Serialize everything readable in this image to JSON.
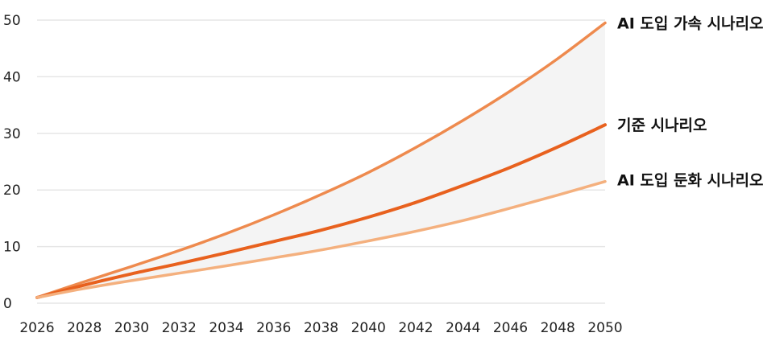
{
  "chart_data": {
    "type": "line",
    "title": "",
    "xlabel": "",
    "ylabel": "",
    "x": [
      2026,
      2028,
      2030,
      2032,
      2034,
      2036,
      2038,
      2040,
      2042,
      2044,
      2046,
      2048,
      2050
    ],
    "x_tick_labels": [
      "2026",
      "2028",
      "2030",
      "2032",
      "2034",
      "2036",
      "2038",
      "2040",
      "2042",
      "2044",
      "2046",
      "2048",
      "2050"
    ],
    "y_tick_labels": [
      "0",
      "10",
      "20",
      "30",
      "40",
      "50"
    ],
    "y_ticks": [
      0,
      10,
      20,
      30,
      40,
      50
    ],
    "xlim": [
      2026,
      2050
    ],
    "ylim": [
      0,
      50
    ],
    "grid": "horizontal",
    "legend": "line-end labels (right)",
    "shaded_band": "between upper and lower series",
    "series": [
      {
        "name": "AI 도입 가속 시나리오",
        "color": "#EE8A4E",
        "values": [
          1.0,
          3.8,
          6.5,
          9.3,
          12.3,
          15.6,
          19.2,
          23.1,
          27.5,
          32.3,
          37.5,
          43.2,
          49.5
        ]
      },
      {
        "name": "기준 시나리오",
        "color": "#E8611E",
        "values": [
          1.0,
          3.2,
          5.2,
          7.0,
          8.9,
          10.9,
          12.9,
          15.2,
          17.8,
          20.8,
          24.0,
          27.6,
          31.5
        ]
      },
      {
        "name": "AI 도입 둔화 시나리오",
        "color": "#F4B07E",
        "values": [
          1.0,
          2.6,
          4.0,
          5.3,
          6.6,
          8.0,
          9.4,
          11.0,
          12.7,
          14.6,
          16.8,
          19.1,
          21.5
        ]
      }
    ],
    "band_color": "#F4F4F4",
    "grid_color": "#E6E6E6"
  }
}
